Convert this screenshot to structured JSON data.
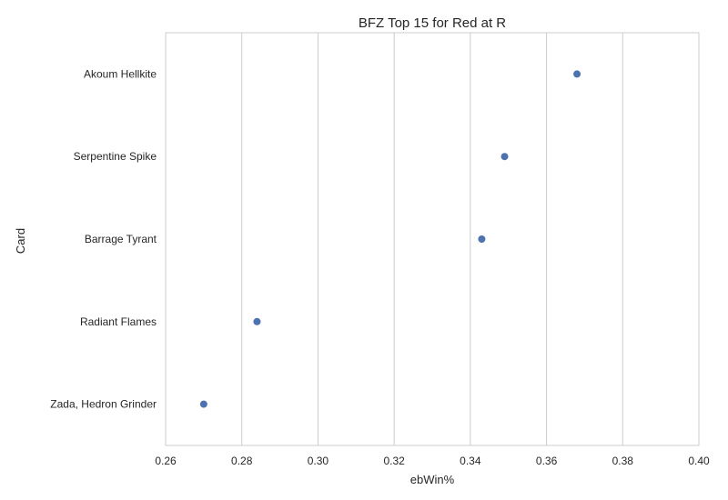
{
  "chart_data": {
    "type": "scatter",
    "title": "BFZ Top 15 for Red at R",
    "xlabel": "ebWin%",
    "ylabel": "Card",
    "xlim": [
      0.26,
      0.4
    ],
    "xticks": [
      "0.26",
      "0.28",
      "0.30",
      "0.32",
      "0.34",
      "0.36",
      "0.38",
      "0.40"
    ],
    "categories": [
      "Akoum Hellkite",
      "Serpentine Spike",
      "Barrage Tyrant",
      "Radiant Flames",
      "Zada, Hedron Grinder"
    ],
    "values": [
      0.368,
      0.349,
      0.343,
      0.284,
      0.27
    ],
    "grid": "vertical",
    "legend": "none",
    "colors": {
      "point": "#4c72b0",
      "grid": "#cccccc",
      "frame": "#cccccc"
    }
  }
}
